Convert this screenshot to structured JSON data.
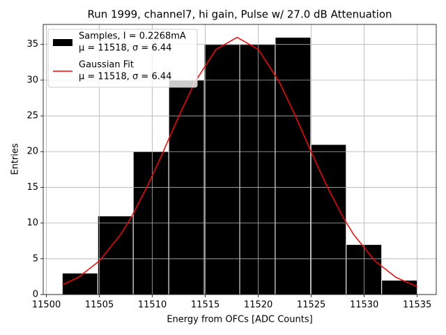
{
  "chart_data": {
    "type": "histogram",
    "title": "Run 1999, channel7, hi gain, Pulse w/ 27.0 dB Attenuation",
    "xlabel": "Energy from OFCs [ADC Counts]",
    "ylabel": "Entries",
    "bins": [
      11501.5,
      11504.85,
      11508.2,
      11511.55,
      11514.9,
      11518.25,
      11521.6,
      11524.95,
      11528.3,
      11531.65,
      11535
    ],
    "series": [
      {
        "type": "histogram",
        "name": [
          "Samples, I = 0.2268mA",
          "μ = 11518, σ = 6.44"
        ],
        "color": "#000000",
        "edgecolor": "#ffffff",
        "values": [
          3,
          11,
          20,
          30,
          35,
          35,
          36,
          21,
          7,
          2
        ]
      },
      {
        "type": "line",
        "name": [
          "Gaussian Fit",
          "μ = 11518, σ = 6.44"
        ],
        "color": "#ff0000",
        "x": [
          11501.5,
          11503,
          11505,
          11507,
          11508,
          11509.5,
          11511,
          11512.5,
          11514,
          11516,
          11518,
          11520,
          11522,
          11523.5,
          11525,
          11526.5,
          11528,
          11529,
          11531,
          11533,
          11535
        ],
        "values": [
          1.35,
          2.4,
          4.7,
          8.4,
          10.8,
          15.1,
          19.9,
          25.0,
          29.7,
          34.3,
          36,
          34.3,
          29.7,
          25.0,
          19.9,
          15.1,
          10.8,
          8.4,
          4.7,
          2.4,
          1.1
        ]
      }
    ],
    "xlim": [
      11499.7,
      11536.8
    ],
    "ylim": [
      0,
      37.8
    ],
    "xticks": [
      11500,
      11505,
      11510,
      11515,
      11520,
      11525,
      11530,
      11535
    ],
    "yticks": [
      0,
      5,
      10,
      15,
      20,
      25,
      30,
      35
    ],
    "grid": true,
    "legend": "upper left"
  }
}
